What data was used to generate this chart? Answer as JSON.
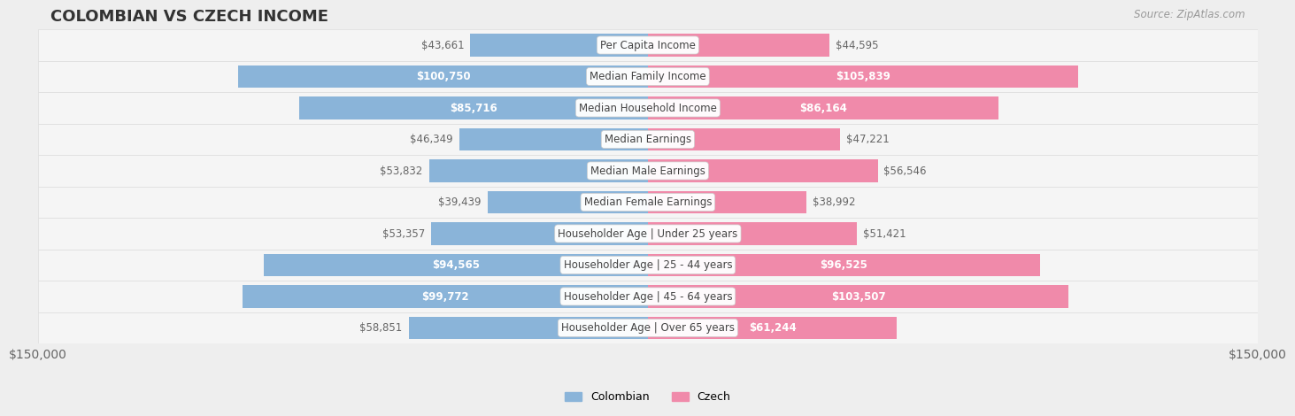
{
  "title": "COLOMBIAN VS CZECH INCOME",
  "source": "Source: ZipAtlas.com",
  "categories": [
    "Per Capita Income",
    "Median Family Income",
    "Median Household Income",
    "Median Earnings",
    "Median Male Earnings",
    "Median Female Earnings",
    "Householder Age | Under 25 years",
    "Householder Age | 25 - 44 years",
    "Householder Age | 45 - 64 years",
    "Householder Age | Over 65 years"
  ],
  "colombian_values": [
    43661,
    100750,
    85716,
    46349,
    53832,
    39439,
    53357,
    94565,
    99772,
    58851
  ],
  "czech_values": [
    44595,
    105839,
    86164,
    47221,
    56546,
    38992,
    51421,
    96525,
    103507,
    61244
  ],
  "colombian_labels": [
    "$43,661",
    "$100,750",
    "$85,716",
    "$46,349",
    "$53,832",
    "$39,439",
    "$53,357",
    "$94,565",
    "$99,772",
    "$58,851"
  ],
  "czech_labels": [
    "$44,595",
    "$105,839",
    "$86,164",
    "$47,221",
    "$56,546",
    "$38,992",
    "$51,421",
    "$96,525",
    "$103,507",
    "$61,244"
  ],
  "colombian_color": "#8ab4d9",
  "czech_color": "#f08aaa",
  "colombian_label": "Colombian",
  "czech_label": "Czech",
  "axis_max": 150000,
  "background_color": "#eeeeee",
  "title_color": "#333333",
  "value_color_inside": "#ffffff",
  "value_color_outside": "#666666",
  "axis_label_color": "#666666",
  "label_threshold": 60000
}
